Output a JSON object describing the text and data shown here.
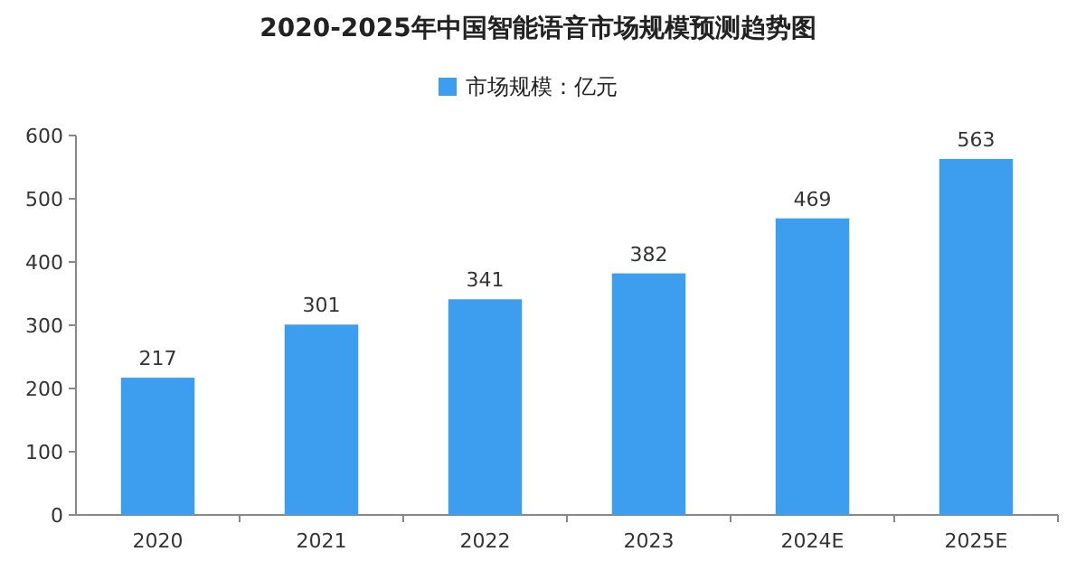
{
  "chart_data": {
    "type": "bar",
    "title": "2020-2025年中国智能语音市场规模预测趋势图",
    "categories": [
      "2020",
      "2021",
      "2022",
      "2023",
      "2024E",
      "2025E"
    ],
    "series": [
      {
        "name": "市场规模：亿元",
        "color": "#3d9ef0",
        "values": [
          217,
          301,
          341,
          382,
          469,
          563
        ]
      }
    ],
    "ylim": [
      0,
      600
    ],
    "yticks": [
      0,
      100,
      200,
      300,
      400,
      500,
      600
    ],
    "data_labels": true,
    "legend": "top",
    "grid": false
  }
}
